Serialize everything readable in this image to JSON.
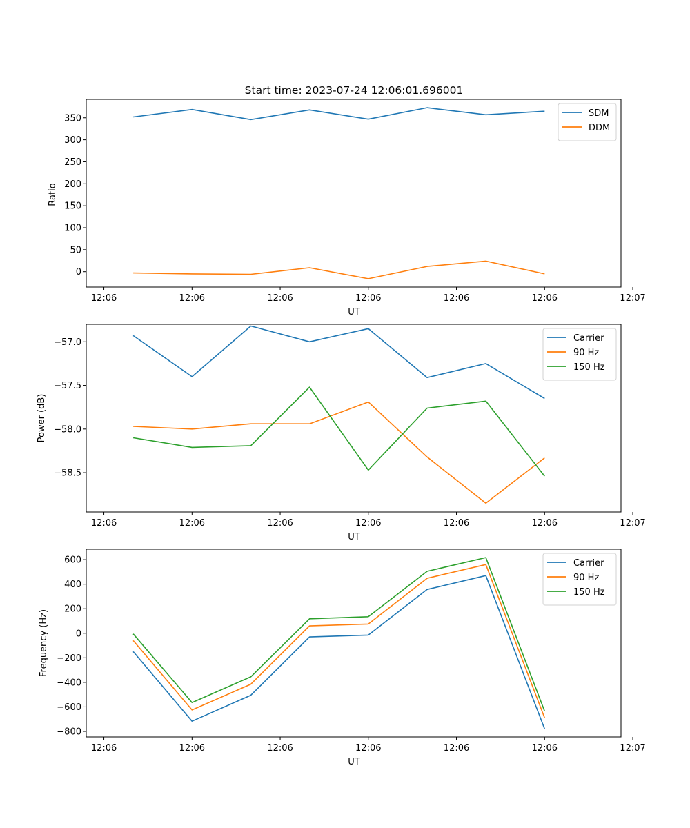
{
  "chart_data": [
    {
      "type": "line",
      "title": "Start time: 2023-07-24 12:06:01.696001",
      "xlabel": "UT",
      "ylabel": "Ratio",
      "xlim": [
        -0.3,
        8.8
      ],
      "ylim": [
        -35,
        392
      ],
      "x": [
        0.5,
        1.5,
        2.5,
        3.5,
        4.5,
        5.5,
        6.5,
        7.5
      ],
      "xticks": [
        0,
        1.5,
        3,
        4.5,
        6,
        7.5,
        9
      ],
      "xtick_labels": [
        "12:06",
        "12:06",
        "12:06",
        "12:06",
        "12:06",
        "12:06",
        "12:07"
      ],
      "yticks": [
        0,
        50,
        100,
        150,
        200,
        250,
        300,
        350
      ],
      "ytick_labels": [
        "0",
        "50",
        "100",
        "150",
        "200",
        "250",
        "300",
        "350"
      ],
      "legend": "top-right",
      "series": [
        {
          "name": "SDM",
          "color": "#1f77b4",
          "values": [
            352,
            369,
            346,
            368,
            347,
            373,
            357,
            365
          ]
        },
        {
          "name": "DDM",
          "color": "#ff7f0e",
          "values": [
            -3,
            -5,
            -6,
            9,
            -16,
            12,
            24,
            -5
          ]
        }
      ]
    },
    {
      "type": "line",
      "xlabel": "UT",
      "ylabel": "Power (dB)",
      "xlim": [
        -0.3,
        8.8
      ],
      "ylim": [
        -58.95,
        -56.8
      ],
      "x": [
        0.5,
        1.5,
        2.5,
        3.5,
        4.5,
        5.5,
        6.5,
        7.5
      ],
      "xticks": [
        0,
        1.5,
        3,
        4.5,
        6,
        7.5,
        9
      ],
      "xtick_labels": [
        "12:06",
        "12:06",
        "12:06",
        "12:06",
        "12:06",
        "12:06",
        "12:07"
      ],
      "yticks": [
        -57.0,
        -57.5,
        -58.0,
        -58.5
      ],
      "ytick_labels": [
        "−57.0",
        "−57.5",
        "−58.0",
        "−58.5"
      ],
      "legend": "top-right",
      "series": [
        {
          "name": "Carrier",
          "color": "#1f77b4",
          "values": [
            -56.93,
            -57.4,
            -56.82,
            -57.0,
            -56.85,
            -57.41,
            -57.25,
            -57.65
          ]
        },
        {
          "name": "90 Hz",
          "color": "#ff7f0e",
          "values": [
            -57.97,
            -58.0,
            -57.94,
            -57.94,
            -57.69,
            -58.32,
            -58.85,
            -58.33
          ]
        },
        {
          "name": "150 Hz",
          "color": "#2ca02c",
          "values": [
            -58.1,
            -58.21,
            -58.19,
            -57.52,
            -58.47,
            -57.76,
            -57.68,
            -58.54
          ]
        }
      ]
    },
    {
      "type": "line",
      "xlabel": "UT",
      "ylabel": "Frequency (Hz)",
      "xlim": [
        -0.3,
        8.8
      ],
      "ylim": [
        -845,
        685
      ],
      "x": [
        0.5,
        1.5,
        2.5,
        3.5,
        4.5,
        5.5,
        6.5,
        7.5
      ],
      "xticks": [
        0,
        1.5,
        3,
        4.5,
        6,
        7.5,
        9
      ],
      "xtick_labels": [
        "12:06",
        "12:06",
        "12:06",
        "12:06",
        "12:06",
        "12:06",
        "12:07"
      ],
      "yticks": [
        600,
        400,
        200,
        0,
        -200,
        -400,
        -600,
        -800
      ],
      "ytick_labels": [
        "600",
        "400",
        "200",
        "0",
        "−200",
        "−400",
        "−600",
        "−800"
      ],
      "legend": "top-right",
      "series": [
        {
          "name": "Carrier",
          "color": "#1f77b4",
          "values": [
            -150,
            -717,
            -505,
            -30,
            -15,
            357,
            470,
            -780
          ]
        },
        {
          "name": "90 Hz",
          "color": "#ff7f0e",
          "values": [
            -60,
            -625,
            -415,
            60,
            75,
            448,
            560,
            -690
          ]
        },
        {
          "name": "150 Hz",
          "color": "#2ca02c",
          "values": [
            -5,
            -565,
            -355,
            118,
            135,
            505,
            617,
            -635
          ]
        }
      ]
    }
  ]
}
